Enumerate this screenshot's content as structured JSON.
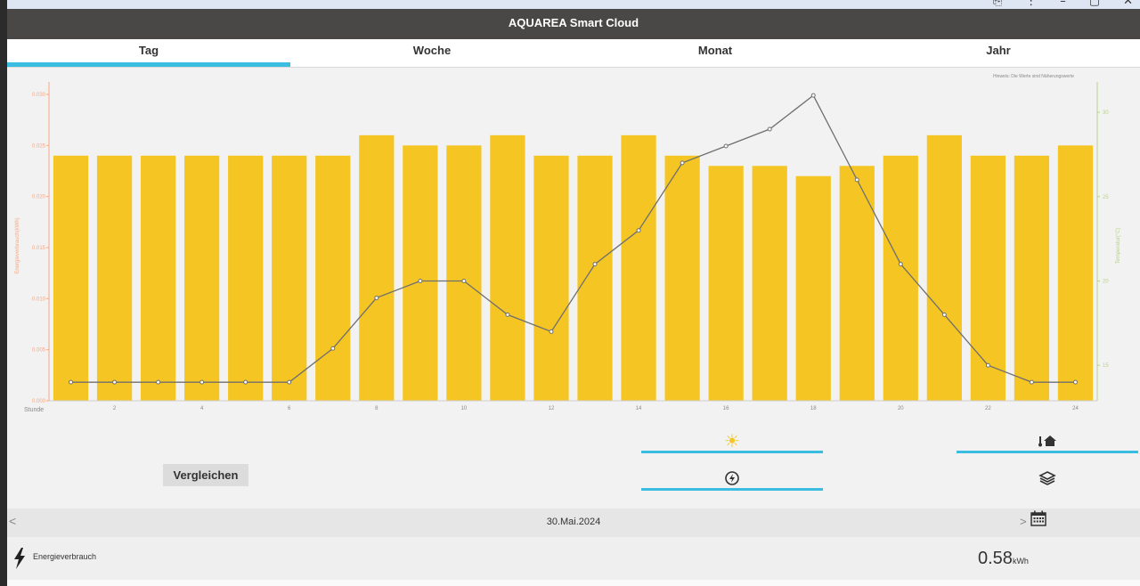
{
  "app": {
    "title": "AQUAREA Smart Cloud"
  },
  "tabs": [
    {
      "label": "Tag",
      "active": true
    },
    {
      "label": "Woche",
      "active": false
    },
    {
      "label": "Monat",
      "active": false
    },
    {
      "label": "Jahr",
      "active": false
    }
  ],
  "chart_data": {
    "type": "bar",
    "note": "Hinweis: Die Werte sind Näherungswerte",
    "xlabel": "Stunde",
    "ylabel": "Energieverbrauch(kWh)",
    "y2label": "Temperatur(°C)",
    "hours": [
      1,
      2,
      3,
      4,
      5,
      6,
      7,
      8,
      9,
      10,
      11,
      12,
      13,
      14,
      15,
      16,
      17,
      18,
      19,
      20,
      21,
      22,
      23,
      24
    ],
    "x_ticks": [
      2,
      4,
      6,
      8,
      10,
      12,
      14,
      16,
      18,
      20,
      22,
      24
    ],
    "energy_kwh": [
      0.024,
      0.024,
      0.024,
      0.024,
      0.024,
      0.024,
      0.024,
      0.026,
      0.025,
      0.025,
      0.026,
      0.024,
      0.024,
      0.026,
      0.024,
      0.023,
      0.023,
      0.022,
      0.023,
      0.024,
      0.026,
      0.024,
      0.024,
      0.025
    ],
    "temperature_c": [
      14,
      14,
      14,
      14,
      14,
      14,
      16,
      19,
      20,
      20,
      18,
      17,
      21,
      23,
      27,
      28,
      29,
      31,
      26,
      21,
      18,
      15,
      14,
      14
    ],
    "ylim": [
      0,
      0.03
    ],
    "y_ticks": [
      "0.000",
      "0.005",
      "0.010",
      "0.015",
      "0.020",
      "0.025",
      "0.030"
    ],
    "y2lim": [
      12.9,
      31.8
    ],
    "y2_ticks": [
      15,
      20,
      25,
      30
    ],
    "colors": {
      "bar": "#f5c623",
      "line": "#6f6f6f",
      "left_axis": "#f4a988",
      "right_axis": "#b8d08c"
    }
  },
  "controls": {
    "compare_label": "Vergleichen",
    "modes": [
      {
        "icon": "sun-icon",
        "glyph": "☀",
        "active": true
      },
      {
        "icon": "thermometer-house-icon",
        "glyph": "🌡🏠",
        "active": true
      },
      {
        "icon": "power-meter-icon",
        "glyph": "",
        "active": true
      },
      {
        "icon": "layers-icon",
        "glyph": "",
        "active": false
      }
    ]
  },
  "datebar": {
    "prev": "<",
    "date": "30.Mai.2024",
    "next": ">"
  },
  "energy": {
    "label": "Energieverbrauch",
    "value": "0.58",
    "unit": "kWh"
  },
  "window_controls": [
    "⎘",
    "⋮",
    "–",
    "▢",
    "✕"
  ]
}
